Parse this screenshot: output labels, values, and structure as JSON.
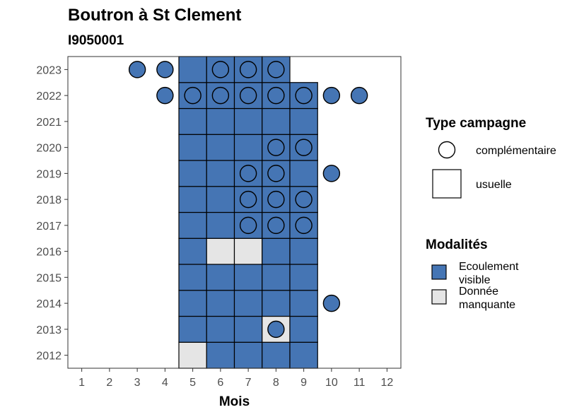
{
  "chart_data": {
    "type": "heatmap",
    "title": "Boutron à St Clement",
    "subtitle": "I9050001",
    "xlabel": "Mois",
    "ylabel": "",
    "x_ticks": [
      1,
      2,
      3,
      4,
      5,
      6,
      7,
      8,
      9,
      10,
      11,
      12
    ],
    "y_ticks": [
      2012,
      2013,
      2014,
      2015,
      2016,
      2017,
      2018,
      2019,
      2020,
      2021,
      2022,
      2023
    ],
    "xlim": [
      0.5,
      12.5
    ],
    "ylim": [
      2011.5,
      2023.5
    ],
    "grid": false,
    "legend_placement": "right",
    "colors": {
      "Ecoulement visible": "#4575b4",
      "Donnée manquante": "#e5e5e5"
    },
    "legends": [
      {
        "title": "Type campagne",
        "entries": [
          {
            "label": "complémentaire",
            "shape": "circle"
          },
          {
            "label": "usuelle",
            "shape": "square"
          }
        ]
      },
      {
        "title": "Modalités",
        "entries": [
          {
            "label_lines": [
              "Ecoulement",
              "visible"
            ],
            "color": "#4575b4"
          },
          {
            "label_lines": [
              "Donnée",
              "manquante"
            ],
            "color": "#e5e5e5"
          }
        ]
      }
    ],
    "cells": [
      {
        "year": 2012,
        "month": 5,
        "modalite": "Donnée manquante",
        "type": "usuelle"
      },
      {
        "year": 2012,
        "month": 6,
        "modalite": "Ecoulement visible",
        "type": "usuelle"
      },
      {
        "year": 2012,
        "month": 7,
        "modalite": "Ecoulement visible",
        "type": "usuelle"
      },
      {
        "year": 2012,
        "month": 8,
        "modalite": "Ecoulement visible",
        "type": "usuelle"
      },
      {
        "year": 2012,
        "month": 9,
        "modalite": "Ecoulement visible",
        "type": "usuelle"
      },
      {
        "year": 2013,
        "month": 5,
        "modalite": "Ecoulement visible",
        "type": "usuelle"
      },
      {
        "year": 2013,
        "month": 6,
        "modalite": "Ecoulement visible",
        "type": "usuelle"
      },
      {
        "year": 2013,
        "month": 7,
        "modalite": "Ecoulement visible",
        "type": "usuelle"
      },
      {
        "year": 2013,
        "month": 8,
        "modalite": "Donnée manquante",
        "type": "usuelle"
      },
      {
        "year": 2013,
        "month": 8,
        "modalite": "Ecoulement visible",
        "type": "complémentaire"
      },
      {
        "year": 2013,
        "month": 9,
        "modalite": "Ecoulement visible",
        "type": "usuelle"
      },
      {
        "year": 2014,
        "month": 5,
        "modalite": "Ecoulement visible",
        "type": "usuelle"
      },
      {
        "year": 2014,
        "month": 6,
        "modalite": "Ecoulement visible",
        "type": "usuelle"
      },
      {
        "year": 2014,
        "month": 7,
        "modalite": "Ecoulement visible",
        "type": "usuelle"
      },
      {
        "year": 2014,
        "month": 8,
        "modalite": "Ecoulement visible",
        "type": "usuelle"
      },
      {
        "year": 2014,
        "month": 9,
        "modalite": "Ecoulement visible",
        "type": "usuelle"
      },
      {
        "year": 2014,
        "month": 10,
        "modalite": "Ecoulement visible",
        "type": "complémentaire"
      },
      {
        "year": 2015,
        "month": 5,
        "modalite": "Ecoulement visible",
        "type": "usuelle"
      },
      {
        "year": 2015,
        "month": 6,
        "modalite": "Ecoulement visible",
        "type": "usuelle"
      },
      {
        "year": 2015,
        "month": 7,
        "modalite": "Ecoulement visible",
        "type": "usuelle"
      },
      {
        "year": 2015,
        "month": 8,
        "modalite": "Ecoulement visible",
        "type": "usuelle"
      },
      {
        "year": 2015,
        "month": 9,
        "modalite": "Ecoulement visible",
        "type": "usuelle"
      },
      {
        "year": 2016,
        "month": 5,
        "modalite": "Ecoulement visible",
        "type": "usuelle"
      },
      {
        "year": 2016,
        "month": 6,
        "modalite": "Donnée manquante",
        "type": "usuelle"
      },
      {
        "year": 2016,
        "month": 7,
        "modalite": "Donnée manquante",
        "type": "usuelle"
      },
      {
        "year": 2016,
        "month": 8,
        "modalite": "Ecoulement visible",
        "type": "usuelle"
      },
      {
        "year": 2016,
        "month": 9,
        "modalite": "Ecoulement visible",
        "type": "usuelle"
      },
      {
        "year": 2017,
        "month": 5,
        "modalite": "Ecoulement visible",
        "type": "usuelle"
      },
      {
        "year": 2017,
        "month": 6,
        "modalite": "Ecoulement visible",
        "type": "usuelle"
      },
      {
        "year": 2017,
        "month": 7,
        "modalite": "Ecoulement visible",
        "type": "usuelle"
      },
      {
        "year": 2017,
        "month": 7,
        "modalite": "Ecoulement visible",
        "type": "complémentaire"
      },
      {
        "year": 2017,
        "month": 8,
        "modalite": "Ecoulement visible",
        "type": "usuelle"
      },
      {
        "year": 2017,
        "month": 8,
        "modalite": "Ecoulement visible",
        "type": "complémentaire"
      },
      {
        "year": 2017,
        "month": 9,
        "modalite": "Ecoulement visible",
        "type": "usuelle"
      },
      {
        "year": 2017,
        "month": 9,
        "modalite": "Ecoulement visible",
        "type": "complémentaire"
      },
      {
        "year": 2018,
        "month": 5,
        "modalite": "Ecoulement visible",
        "type": "usuelle"
      },
      {
        "year": 2018,
        "month": 6,
        "modalite": "Ecoulement visible",
        "type": "usuelle"
      },
      {
        "year": 2018,
        "month": 7,
        "modalite": "Ecoulement visible",
        "type": "usuelle"
      },
      {
        "year": 2018,
        "month": 7,
        "modalite": "Ecoulement visible",
        "type": "complémentaire"
      },
      {
        "year": 2018,
        "month": 8,
        "modalite": "Ecoulement visible",
        "type": "usuelle"
      },
      {
        "year": 2018,
        "month": 8,
        "modalite": "Ecoulement visible",
        "type": "complémentaire"
      },
      {
        "year": 2018,
        "month": 9,
        "modalite": "Ecoulement visible",
        "type": "usuelle"
      },
      {
        "year": 2018,
        "month": 9,
        "modalite": "Ecoulement visible",
        "type": "complémentaire"
      },
      {
        "year": 2019,
        "month": 5,
        "modalite": "Ecoulement visible",
        "type": "usuelle"
      },
      {
        "year": 2019,
        "month": 6,
        "modalite": "Ecoulement visible",
        "type": "usuelle"
      },
      {
        "year": 2019,
        "month": 7,
        "modalite": "Ecoulement visible",
        "type": "usuelle"
      },
      {
        "year": 2019,
        "month": 7,
        "modalite": "Ecoulement visible",
        "type": "complémentaire"
      },
      {
        "year": 2019,
        "month": 8,
        "modalite": "Ecoulement visible",
        "type": "usuelle"
      },
      {
        "year": 2019,
        "month": 8,
        "modalite": "Ecoulement visible",
        "type": "complémentaire"
      },
      {
        "year": 2019,
        "month": 9,
        "modalite": "Ecoulement visible",
        "type": "usuelle"
      },
      {
        "year": 2019,
        "month": 10,
        "modalite": "Ecoulement visible",
        "type": "complémentaire"
      },
      {
        "year": 2020,
        "month": 5,
        "modalite": "Ecoulement visible",
        "type": "usuelle"
      },
      {
        "year": 2020,
        "month": 6,
        "modalite": "Ecoulement visible",
        "type": "usuelle"
      },
      {
        "year": 2020,
        "month": 7,
        "modalite": "Ecoulement visible",
        "type": "usuelle"
      },
      {
        "year": 2020,
        "month": 8,
        "modalite": "Ecoulement visible",
        "type": "usuelle"
      },
      {
        "year": 2020,
        "month": 8,
        "modalite": "Ecoulement visible",
        "type": "complémentaire"
      },
      {
        "year": 2020,
        "month": 9,
        "modalite": "Ecoulement visible",
        "type": "usuelle"
      },
      {
        "year": 2020,
        "month": 9,
        "modalite": "Ecoulement visible",
        "type": "complémentaire"
      },
      {
        "year": 2021,
        "month": 5,
        "modalite": "Ecoulement visible",
        "type": "usuelle"
      },
      {
        "year": 2021,
        "month": 6,
        "modalite": "Ecoulement visible",
        "type": "usuelle"
      },
      {
        "year": 2021,
        "month": 7,
        "modalite": "Ecoulement visible",
        "type": "usuelle"
      },
      {
        "year": 2021,
        "month": 8,
        "modalite": "Ecoulement visible",
        "type": "usuelle"
      },
      {
        "year": 2021,
        "month": 9,
        "modalite": "Ecoulement visible",
        "type": "usuelle"
      },
      {
        "year": 2022,
        "month": 4,
        "modalite": "Ecoulement visible",
        "type": "complémentaire"
      },
      {
        "year": 2022,
        "month": 5,
        "modalite": "Ecoulement visible",
        "type": "usuelle"
      },
      {
        "year": 2022,
        "month": 5,
        "modalite": "Ecoulement visible",
        "type": "complémentaire"
      },
      {
        "year": 2022,
        "month": 6,
        "modalite": "Ecoulement visible",
        "type": "usuelle"
      },
      {
        "year": 2022,
        "month": 6,
        "modalite": "Ecoulement visible",
        "type": "complémentaire"
      },
      {
        "year": 2022,
        "month": 7,
        "modalite": "Ecoulement visible",
        "type": "usuelle"
      },
      {
        "year": 2022,
        "month": 7,
        "modalite": "Ecoulement visible",
        "type": "complémentaire"
      },
      {
        "year": 2022,
        "month": 8,
        "modalite": "Ecoulement visible",
        "type": "usuelle"
      },
      {
        "year": 2022,
        "month": 8,
        "modalite": "Ecoulement visible",
        "type": "complémentaire"
      },
      {
        "year": 2022,
        "month": 9,
        "modalite": "Ecoulement visible",
        "type": "usuelle"
      },
      {
        "year": 2022,
        "month": 9,
        "modalite": "Ecoulement visible",
        "type": "complémentaire"
      },
      {
        "year": 2022,
        "month": 10,
        "modalite": "Ecoulement visible",
        "type": "complémentaire"
      },
      {
        "year": 2022,
        "month": 11,
        "modalite": "Ecoulement visible",
        "type": "complémentaire"
      },
      {
        "year": 2023,
        "month": 3,
        "modalite": "Ecoulement visible",
        "type": "complémentaire"
      },
      {
        "year": 2023,
        "month": 4,
        "modalite": "Ecoulement visible",
        "type": "complémentaire"
      },
      {
        "year": 2023,
        "month": 5,
        "modalite": "Ecoulement visible",
        "type": "usuelle"
      },
      {
        "year": 2023,
        "month": 6,
        "modalite": "Ecoulement visible",
        "type": "usuelle"
      },
      {
        "year": 2023,
        "month": 6,
        "modalite": "Ecoulement visible",
        "type": "complémentaire"
      },
      {
        "year": 2023,
        "month": 7,
        "modalite": "Ecoulement visible",
        "type": "usuelle"
      },
      {
        "year": 2023,
        "month": 7,
        "modalite": "Ecoulement visible",
        "type": "complémentaire"
      },
      {
        "year": 2023,
        "month": 8,
        "modalite": "Ecoulement visible",
        "type": "usuelle"
      },
      {
        "year": 2023,
        "month": 8,
        "modalite": "Ecoulement visible",
        "type": "complémentaire"
      }
    ]
  }
}
